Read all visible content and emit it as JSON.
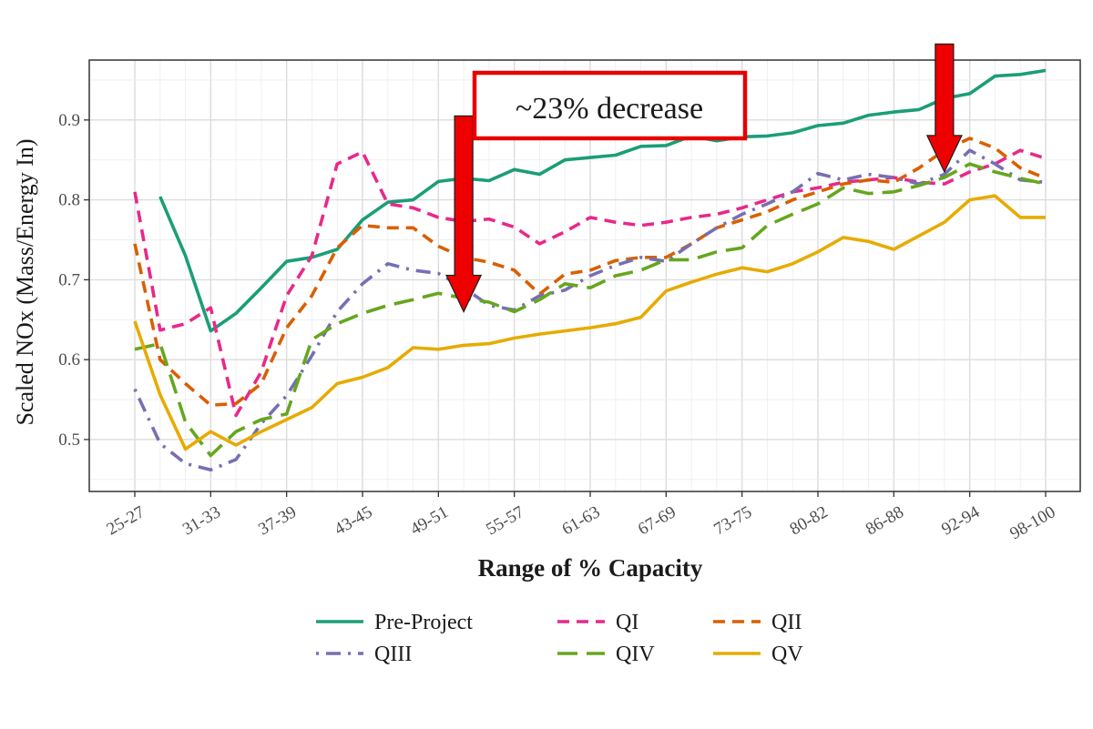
{
  "chart_data": {
    "type": "line",
    "xlabel": "Range of % Capacity",
    "ylabel": "Scaled NOx (Mass/Energy In)",
    "ylim": [
      0.435,
      0.975
    ],
    "yticks": [
      0.5,
      0.6,
      0.7,
      0.8,
      0.9
    ],
    "ytick_labels": [
      "0.5",
      "0.6",
      "0.7",
      "0.8",
      "0.9"
    ],
    "x_tick_labels": [
      "25-27",
      "31-33",
      "37-39",
      "43-45",
      "49-51",
      "55-57",
      "61-63",
      "67-69",
      "73-75",
      "80-82",
      "86-88",
      "92-94",
      "98-100"
    ],
    "n_points": 37,
    "grid": true,
    "legend_position": "bottom",
    "annotation": "~23% decrease",
    "series": [
      {
        "name": "Pre-Project",
        "color": "#1b9e77",
        "dash": "solid",
        "start_index": 1,
        "values": [
          0.804,
          0.73,
          0.636,
          0.658,
          0.69,
          0.723,
          0.728,
          0.738,
          0.775,
          0.797,
          0.8,
          0.823,
          0.827,
          0.824,
          0.838,
          0.832,
          0.85,
          0.853,
          0.856,
          0.867,
          0.868,
          0.88,
          0.874,
          0.879,
          0.88,
          0.884,
          0.893,
          0.896,
          0.906,
          0.91,
          0.913,
          0.927,
          0.933,
          0.955,
          0.957,
          0.962
        ]
      },
      {
        "name": "QI",
        "color": "#e7298a",
        "dash": "dashed",
        "start_index": 0,
        "values": [
          0.81,
          0.637,
          0.645,
          0.665,
          0.53,
          0.585,
          0.68,
          0.73,
          0.845,
          0.86,
          0.795,
          0.79,
          0.778,
          0.773,
          0.776,
          0.766,
          0.745,
          0.76,
          0.778,
          0.772,
          0.768,
          0.772,
          0.778,
          0.782,
          0.79,
          0.8,
          0.81,
          0.815,
          0.822,
          0.825,
          0.828,
          0.822,
          0.82,
          0.835,
          0.845,
          0.862,
          0.852
        ]
      },
      {
        "name": "QII",
        "color": "#d95f02",
        "dash": "dashed",
        "start_index": 0,
        "values": [
          0.745,
          0.6,
          0.57,
          0.543,
          0.545,
          0.57,
          0.64,
          0.68,
          0.74,
          0.768,
          0.765,
          0.765,
          0.742,
          0.728,
          0.722,
          0.712,
          0.682,
          0.707,
          0.712,
          0.724,
          0.728,
          0.728,
          0.745,
          0.765,
          0.775,
          0.785,
          0.8,
          0.81,
          0.82,
          0.825,
          0.822,
          0.84,
          0.862,
          0.877,
          0.865,
          0.84,
          0.827
        ]
      },
      {
        "name": "QIII",
        "color": "#7570b3",
        "dash": "dashdot",
        "start_index": 0,
        "values": [
          0.563,
          0.495,
          0.47,
          0.462,
          0.475,
          0.52,
          0.555,
          0.605,
          0.66,
          0.695,
          0.72,
          0.712,
          0.708,
          0.69,
          0.668,
          0.662,
          0.68,
          0.687,
          0.705,
          0.718,
          0.728,
          0.723,
          0.745,
          0.765,
          0.782,
          0.795,
          0.81,
          0.833,
          0.825,
          0.832,
          0.828,
          0.82,
          0.832,
          0.862,
          0.845,
          0.825,
          0.822
        ]
      },
      {
        "name": "QIV",
        "color": "#66a61e",
        "dash": "longdash",
        "start_index": 0,
        "values": [
          0.613,
          0.62,
          0.522,
          0.48,
          0.51,
          0.525,
          0.532,
          0.625,
          0.645,
          0.658,
          0.668,
          0.675,
          0.683,
          0.677,
          0.672,
          0.66,
          0.675,
          0.695,
          0.69,
          0.705,
          0.712,
          0.725,
          0.725,
          0.735,
          0.74,
          0.768,
          0.782,
          0.795,
          0.815,
          0.808,
          0.81,
          0.818,
          0.828,
          0.845,
          0.835,
          0.827,
          0.82
        ]
      },
      {
        "name": "QV",
        "color": "#e6ab02",
        "dash": "solid",
        "start_index": 0,
        "values": [
          0.648,
          0.556,
          0.488,
          0.51,
          0.493,
          0.51,
          0.525,
          0.54,
          0.57,
          0.578,
          0.59,
          0.615,
          0.613,
          0.618,
          0.62,
          0.627,
          0.632,
          0.636,
          0.64,
          0.645,
          0.653,
          0.686,
          0.697,
          0.707,
          0.715,
          0.71,
          0.72,
          0.735,
          0.753,
          0.748,
          0.738,
          0.755,
          0.772,
          0.8,
          0.805,
          0.778,
          0.778
        ]
      }
    ],
    "arrows": [
      {
        "x_index": 13,
        "y_top": 0.905,
        "y_tip": 0.66,
        "color": "#ee0000"
      },
      {
        "x_index": 32,
        "y_top": 0.995,
        "y_tip": 0.835,
        "color": "#ee0000"
      }
    ]
  }
}
